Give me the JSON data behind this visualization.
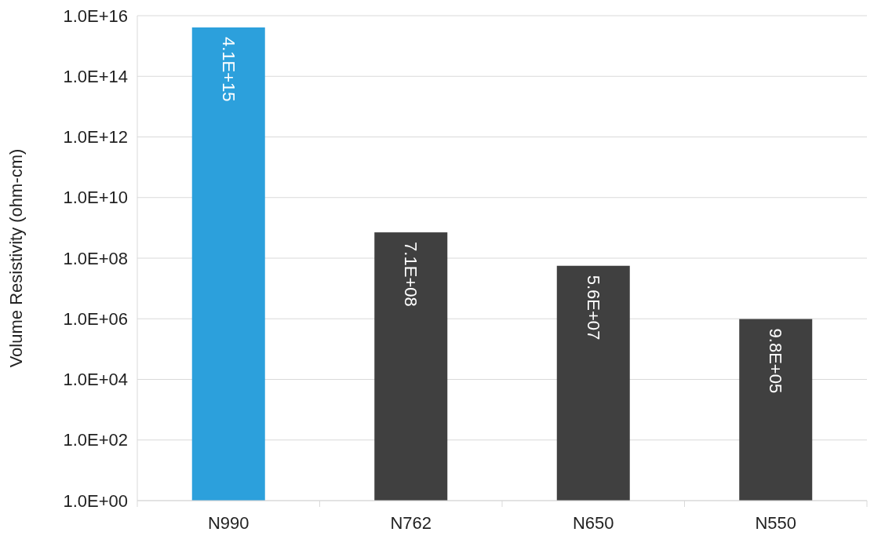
{
  "chart_data": {
    "type": "bar",
    "ylabel": "Volume Resistivity (ohm-cm)",
    "categories": [
      "N990",
      "N762",
      "N650",
      "N550"
    ],
    "values": [
      4100000000000000.0,
      710000000.0,
      56000000.0,
      980000.0
    ],
    "colors": [
      "#2ca0dc",
      "#404040",
      "#404040",
      "#404040"
    ],
    "value_labels": [
      "4.1E+15",
      "7.1E+08",
      "5.6E+07",
      "9.8E+05"
    ],
    "log": true,
    "ylim": [
      1,
      1e+16
    ],
    "yticks": [
      {
        "value": 1,
        "label": "1.0E+00"
      },
      {
        "value": 100,
        "label": "1.0E+02"
      },
      {
        "value": 10000,
        "label": "1.0E+04"
      },
      {
        "value": 1000000,
        "label": "1.0E+06"
      },
      {
        "value": 100000000,
        "label": "1.0E+08"
      },
      {
        "value": 10000000000,
        "label": "1.0E+10"
      },
      {
        "value": 1000000000000,
        "label": "1.0E+12"
      },
      {
        "value": 100000000000000,
        "label": "1.0E+14"
      },
      {
        "value": 10000000000000000,
        "label": "1.0E+16"
      }
    ],
    "grid": "y"
  }
}
